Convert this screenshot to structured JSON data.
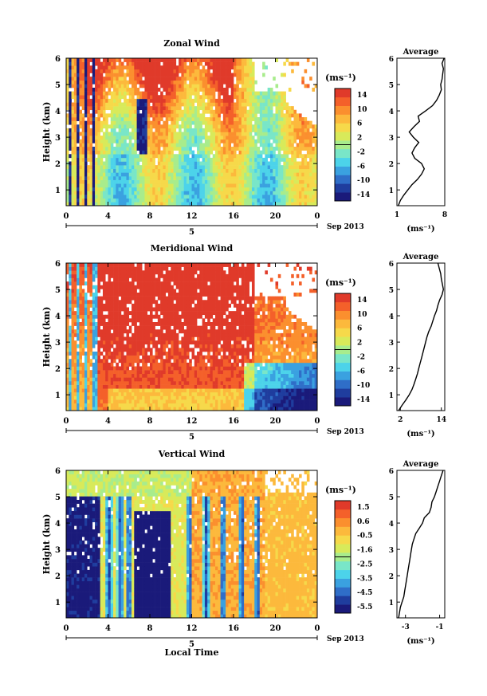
{
  "date_label": "Sep 2013",
  "day_label": "5",
  "bottom_xlabel": "Local Time",
  "colors": {
    "jet": [
      "#1a1a7a",
      "#1f3d9e",
      "#2f6ec8",
      "#3aa1e0",
      "#4cd3ea",
      "#79e6c8",
      "#a8ec8c",
      "#d8ea5a",
      "#f6d94a",
      "#fcb93c",
      "#fb8f2e",
      "#f4602a",
      "#e03a2a"
    ],
    "white": "#ffffff",
    "line": "#000000"
  },
  "chart_data": [
    {
      "type": "heatmap",
      "title": "Zonal Wind",
      "xlabel": "",
      "ylabel": "Height (km)",
      "xlim": [
        0,
        24
      ],
      "ylim": [
        0.4,
        6
      ],
      "x_ticks": [
        "0",
        "4",
        "8",
        "12",
        "16",
        "20",
        "0"
      ],
      "y_ticks": [
        "1",
        "2",
        "3",
        "4",
        "5",
        "6"
      ],
      "colorbar": {
        "unit": "(ms⁻¹)",
        "ticks": [
          "14",
          "10",
          "6",
          "2",
          "-2",
          "-6",
          "-10",
          "-14"
        ],
        "range": [
          -14,
          14
        ]
      },
      "average_panel": {
        "title": "Average",
        "xlabel": "(ms⁻¹)",
        "xlim": [
          1,
          8
        ],
        "x_ticks": [
          "1",
          "8"
        ],
        "height": [
          0.4,
          0.6,
          0.8,
          1.0,
          1.2,
          1.4,
          1.6,
          1.8,
          2.0,
          2.2,
          2.4,
          2.6,
          2.8,
          3.0,
          3.2,
          3.4,
          3.6,
          3.8,
          4.0,
          4.2,
          4.4,
          4.6,
          4.8,
          5.0,
          5.2,
          5.4,
          5.6,
          5.8,
          6.0
        ],
        "value": [
          1.2,
          1.5,
          2.0,
          2.6,
          3.2,
          4.0,
          4.6,
          5.0,
          4.6,
          3.6,
          3.2,
          3.6,
          4.2,
          3.4,
          2.8,
          3.5,
          4.3,
          4.1,
          5.2,
          6.2,
          6.8,
          7.2,
          7.5,
          7.4,
          7.6,
          7.7,
          7.8,
          7.6,
          7.9
        ]
      }
    },
    {
      "type": "heatmap",
      "title": "Meridional Wind",
      "xlabel": "",
      "ylabel": "Height (km)",
      "xlim": [
        0,
        24
      ],
      "ylim": [
        0.4,
        6
      ],
      "x_ticks": [
        "0",
        "4",
        "8",
        "12",
        "16",
        "20",
        "0"
      ],
      "y_ticks": [
        "1",
        "2",
        "3",
        "4",
        "5",
        "6"
      ],
      "colorbar": {
        "unit": "(ms⁻¹)",
        "ticks": [
          "14",
          "10",
          "6",
          "2",
          "-2",
          "-6",
          "-10",
          "-14"
        ],
        "range": [
          -14,
          14
        ]
      },
      "average_panel": {
        "title": "Average",
        "xlabel": "(ms⁻¹)",
        "xlim": [
          1,
          15
        ],
        "x_ticks": [
          "2",
          "14"
        ],
        "height": [
          0.4,
          0.6,
          0.8,
          1.0,
          1.2,
          1.4,
          1.6,
          1.8,
          2.0,
          2.2,
          2.4,
          2.6,
          2.8,
          3.0,
          3.2,
          3.4,
          3.6,
          3.8,
          4.0,
          4.2,
          4.4,
          4.6,
          4.8,
          5.0,
          5.2,
          5.4,
          5.6,
          5.8,
          6.0
        ],
        "value": [
          1.5,
          2.5,
          3.6,
          4.6,
          5.4,
          6.0,
          6.5,
          7.0,
          7.4,
          7.8,
          8.2,
          8.6,
          9.0,
          9.4,
          9.8,
          10.3,
          11.0,
          11.5,
          12.0,
          12.6,
          13.0,
          13.5,
          14.2,
          14.6,
          14.3,
          14.0,
          13.8,
          13.4,
          13.0
        ]
      }
    },
    {
      "type": "heatmap",
      "title": "Vertical Wind",
      "xlabel": "Local Time",
      "ylabel": "Height (km)",
      "xlim": [
        0,
        24
      ],
      "ylim": [
        0.4,
        6
      ],
      "x_ticks": [
        "0",
        "4",
        "8",
        "12",
        "16",
        "20",
        "0"
      ],
      "y_ticks": [
        "1",
        "2",
        "3",
        "4",
        "5",
        "6"
      ],
      "colorbar": {
        "unit": "(ms⁻¹)",
        "ticks": [
          "1.5",
          "0.6",
          "-0.5",
          "-1.6",
          "-2.5",
          "-3.5",
          "-4.5",
          "-5.5"
        ],
        "range": [
          -6,
          2
        ]
      },
      "average_panel": {
        "title": "Average",
        "xlabel": "(ms⁻¹)",
        "xlim": [
          -3.5,
          -0.7
        ],
        "x_ticks": [
          "-3",
          "-1"
        ],
        "height": [
          0.4,
          0.6,
          0.8,
          1.0,
          1.2,
          1.4,
          1.6,
          1.8,
          2.0,
          2.2,
          2.4,
          2.6,
          2.8,
          3.0,
          3.2,
          3.4,
          3.6,
          3.8,
          4.0,
          4.2,
          4.4,
          4.6,
          4.8,
          5.0,
          5.2,
          5.4,
          5.6,
          5.8,
          6.0
        ],
        "value": [
          -3.4,
          -3.35,
          -3.3,
          -3.2,
          -3.1,
          -3.05,
          -3.0,
          -2.95,
          -2.9,
          -2.85,
          -2.8,
          -2.75,
          -2.7,
          -2.65,
          -2.6,
          -2.5,
          -2.4,
          -2.2,
          -2.0,
          -1.9,
          -1.6,
          -1.5,
          -1.45,
          -1.3,
          -1.2,
          -1.1,
          -1.0,
          -0.9,
          -0.8
        ]
      }
    }
  ]
}
